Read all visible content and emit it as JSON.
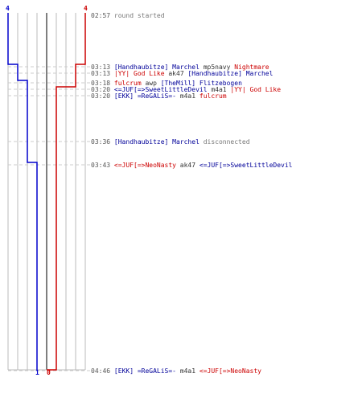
{
  "colors": {
    "team_blue": "#0000cc",
    "team_red": "#cc0000",
    "grid": "#bbbbbb",
    "center": "#555555",
    "dash": "#cccccc"
  },
  "scores": {
    "blue_start": "4",
    "red_start": "4",
    "blue_end": "1",
    "red_end": "0"
  },
  "events": [
    {
      "time": "02:57",
      "parts": [
        {
          "t": "round started",
          "c": "gray"
        }
      ]
    },
    {
      "time": "03:13",
      "parts": [
        {
          "t": "[Handhaubitze] Marchel",
          "c": "blue"
        },
        {
          "t": " mp5navy ",
          "c": "plain"
        },
        {
          "t": "Nightmare",
          "c": "red"
        }
      ]
    },
    {
      "time": "03:13",
      "parts": [
        {
          "t": "|YY| God Like",
          "c": "red"
        },
        {
          "t": " ak47 ",
          "c": "plain"
        },
        {
          "t": "[Handhaubitze] Marchel",
          "c": "blue"
        }
      ]
    },
    {
      "time": "03:18",
      "parts": [
        {
          "t": "fulcrum",
          "c": "red"
        },
        {
          "t": " awp ",
          "c": "plain"
        },
        {
          "t": "[TheMill] Flitzebogen",
          "c": "blue"
        }
      ]
    },
    {
      "time": "03:20",
      "parts": [
        {
          "t": "<=JUF[=>SweetLittleDevil",
          "c": "blue"
        },
        {
          "t": " m4a1 ",
          "c": "plain"
        },
        {
          "t": "|YY| God Like",
          "c": "red"
        }
      ]
    },
    {
      "time": "03:20",
      "parts": [
        {
          "t": "[EKK] =ReGALiS=-",
          "c": "blue"
        },
        {
          "t": " m4a1 ",
          "c": "plain"
        },
        {
          "t": "fulcrum",
          "c": "red"
        }
      ]
    },
    {
      "time": "03:36",
      "parts": [
        {
          "t": "[Handhaubitze] Marchel",
          "c": "blue"
        },
        {
          "t": " disconnected",
          "c": "gray"
        }
      ]
    },
    {
      "time": "03:43",
      "parts": [
        {
          "t": "<=JUF[=>NeoNasty",
          "c": "red"
        },
        {
          "t": " ak47 ",
          "c": "plain"
        },
        {
          "t": "<=JUF[=>SweetLittleDevil",
          "c": "blue"
        }
      ]
    },
    {
      "time": "04:46",
      "parts": [
        {
          "t": "[EKK] =ReGALiS=-",
          "c": "blue"
        },
        {
          "t": " m4a1 ",
          "c": "plain"
        },
        {
          "t": "<=JUF[=>NeoNasty",
          "c": "red"
        }
      ]
    }
  ]
}
